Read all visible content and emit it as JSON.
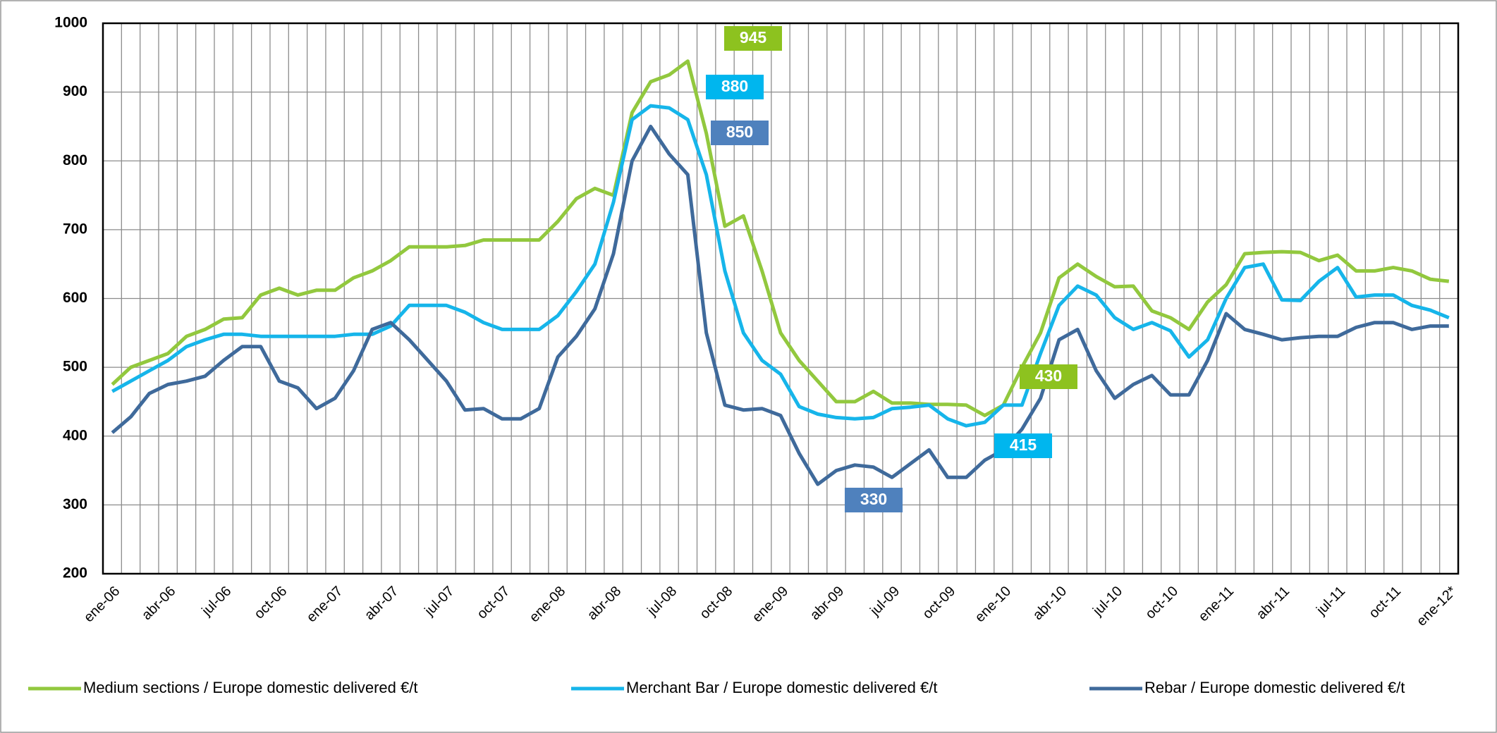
{
  "chart_data": {
    "type": "line",
    "categories": [
      "ene-06",
      null,
      null,
      "abr-06",
      null,
      null,
      "jul-06",
      null,
      null,
      "oct-06",
      null,
      null,
      "ene-07",
      null,
      null,
      "abr-07",
      null,
      null,
      "jul-07",
      null,
      null,
      "oct-07",
      null,
      null,
      "ene-08",
      null,
      null,
      "abr-08",
      null,
      null,
      "jul-08",
      null,
      null,
      "oct-08",
      null,
      null,
      "ene-09",
      null,
      null,
      "abr-09",
      null,
      null,
      "jul-09",
      null,
      null,
      "oct-09",
      null,
      null,
      "ene-10",
      null,
      null,
      "abr-10",
      null,
      null,
      "jul-10",
      null,
      null,
      "oct-10",
      null,
      null,
      "ene-11",
      null,
      null,
      "abr-11",
      null,
      null,
      "jul-11",
      null,
      null,
      "oct-11",
      null,
      null,
      "ene-12*"
    ],
    "series": [
      {
        "name": "Medium sections / Europe domestic delivered €/t",
        "color": "#92c83e",
        "values": [
          475,
          500,
          510,
          520,
          545,
          555,
          570,
          572,
          605,
          615,
          605,
          612,
          612,
          630,
          640,
          655,
          675,
          675,
          675,
          677,
          685,
          685,
          685,
          685,
          712,
          745,
          760,
          750,
          870,
          915,
          925,
          945,
          840,
          705,
          720,
          640,
          550,
          510,
          480,
          450,
          450,
          465,
          448,
          448,
          446,
          446,
          445,
          430,
          445,
          500,
          550,
          630,
          650,
          632,
          617,
          618,
          582,
          572,
          555,
          595,
          620,
          665,
          667,
          668,
          667,
          655,
          663,
          640,
          640,
          645,
          640,
          628,
          625
        ]
      },
      {
        "name": "Merchant Bar / Europe domestic delivered €/t",
        "color": "#16b5ea",
        "values": [
          465,
          480,
          495,
          510,
          530,
          540,
          548,
          548,
          545,
          545,
          545,
          545,
          545,
          548,
          548,
          560,
          590,
          590,
          590,
          580,
          565,
          555,
          555,
          555,
          575,
          610,
          650,
          740,
          860,
          880,
          877,
          860,
          780,
          640,
          550,
          510,
          490,
          443,
          432,
          427,
          425,
          427,
          440,
          442,
          445,
          425,
          415,
          420,
          445,
          445,
          520,
          590,
          618,
          605,
          572,
          555,
          565,
          553,
          515,
          540,
          600,
          645,
          650,
          598,
          597,
          625,
          645,
          602,
          605,
          605,
          590,
          583,
          572
        ]
      },
      {
        "name": "Rebar / Europe domestic delivered €/t",
        "color": "#3f6a9b",
        "values": [
          405,
          428,
          462,
          475,
          480,
          487,
          510,
          530,
          530,
          480,
          470,
          440,
          455,
          495,
          555,
          565,
          540,
          510,
          480,
          438,
          440,
          425,
          425,
          440,
          515,
          545,
          585,
          665,
          800,
          850,
          810,
          780,
          550,
          445,
          438,
          440,
          430,
          375,
          330,
          350,
          358,
          355,
          340,
          360,
          380,
          340,
          340,
          365,
          380,
          410,
          455,
          540,
          555,
          495,
          455,
          475,
          488,
          460,
          460,
          510,
          578,
          555,
          548,
          540,
          543,
          545,
          545,
          558,
          565,
          565,
          555,
          560,
          560
        ]
      }
    ],
    "annotations": [
      {
        "text": "945",
        "color": "#8dc21f"
      },
      {
        "text": "880",
        "color": "#00b6ee"
      },
      {
        "text": "850",
        "color": "#4f81bd"
      },
      {
        "text": "430",
        "color": "#8dc21f"
      },
      {
        "text": "415",
        "color": "#00b6ee"
      },
      {
        "text": "330",
        "color": "#4f81bd"
      }
    ],
    "ylim": [
      200,
      1000
    ],
    "yticks": [
      200,
      300,
      400,
      500,
      600,
      700,
      800,
      900,
      1000
    ],
    "grid": true,
    "legend": "bottom"
  }
}
